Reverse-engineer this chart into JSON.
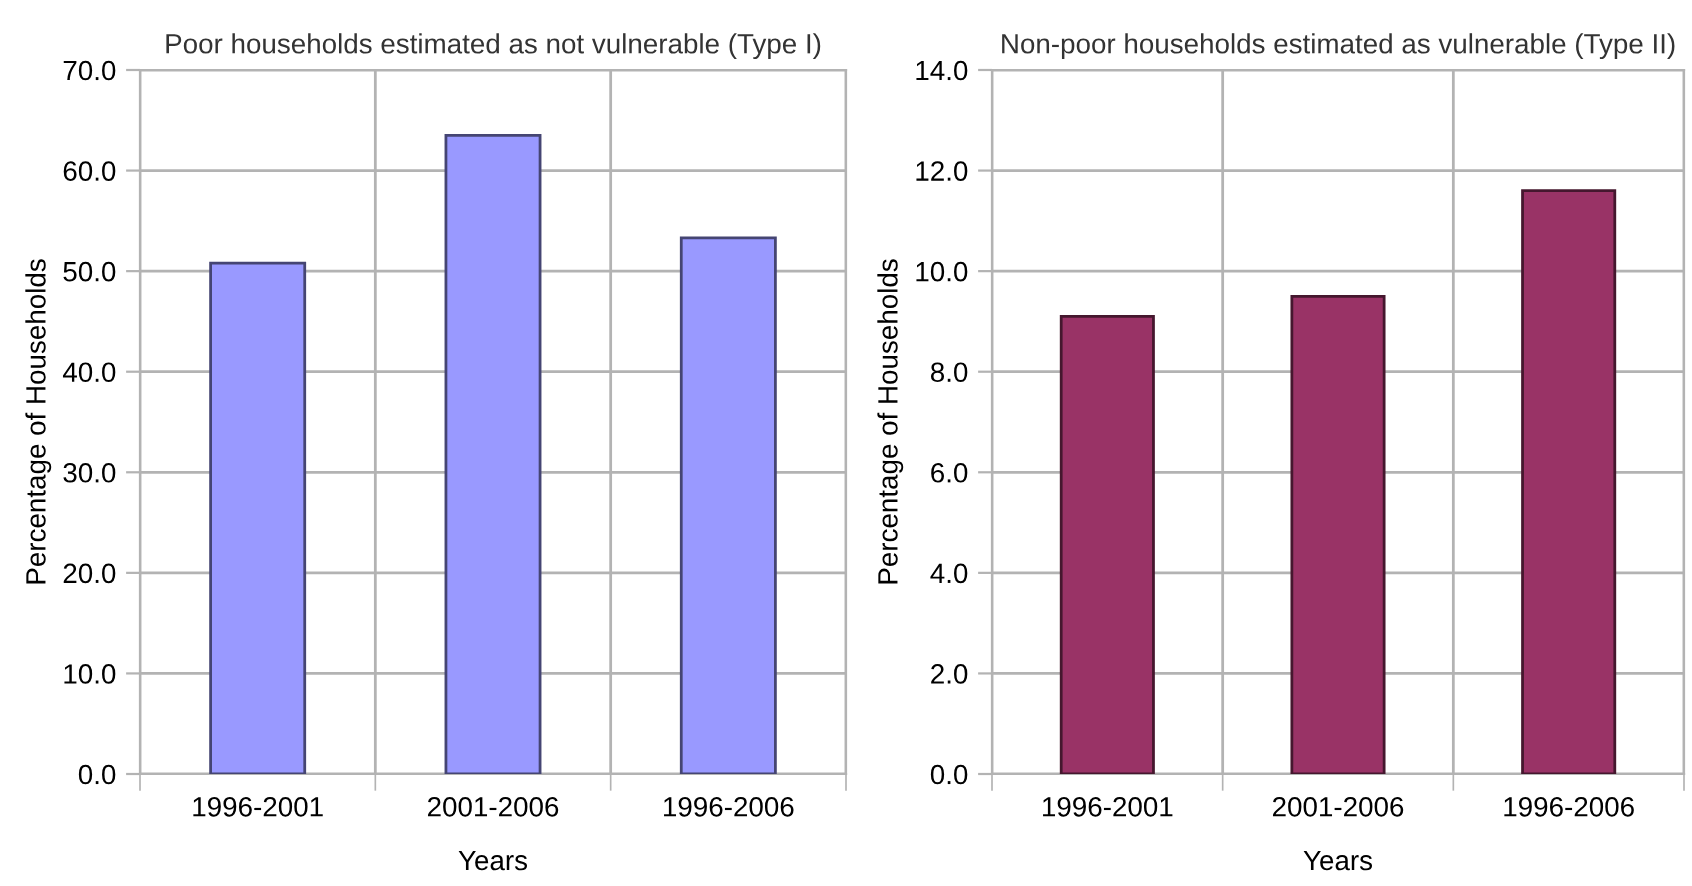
{
  "chart_data": [
    {
      "type": "bar",
      "title": "Poor households estimated as not vulnerable (Type I)",
      "xlabel": "Years",
      "ylabel": "Percentage of Households",
      "categories": [
        "1996-2001",
        "2001-2006",
        "1996-2006"
      ],
      "series": [
        {
          "color": "#9999ff",
          "values": [
            50.8,
            63.5,
            53.3
          ]
        }
      ],
      "ylim": [
        0,
        70
      ],
      "yticks": [
        {
          "value": 0,
          "label": "0.0"
        },
        {
          "value": 10,
          "label": "10.0"
        },
        {
          "value": 20,
          "label": "20.0"
        },
        {
          "value": 30,
          "label": "30.0"
        },
        {
          "value": 40,
          "label": "40.0"
        },
        {
          "value": 50,
          "label": "50.0"
        },
        {
          "value": 60,
          "label": "60.0"
        },
        {
          "value": 70,
          "label": "70.0"
        }
      ],
      "grid": true,
      "legend": false
    },
    {
      "type": "bar",
      "title": "Non-poor households estimated as vulnerable (Type II)",
      "xlabel": "Years",
      "ylabel": "Percentage of Households",
      "categories": [
        "1996-2001",
        "2001-2006",
        "1996-2006"
      ],
      "series": [
        {
          "color": "#993366",
          "values": [
            9.1,
            9.5,
            11.6
          ]
        }
      ],
      "ylim": [
        0,
        14
      ],
      "yticks": [
        {
          "value": 0,
          "label": "0.0"
        },
        {
          "value": 2,
          "label": "2.0"
        },
        {
          "value": 4,
          "label": "4.0"
        },
        {
          "value": 6,
          "label": "6.0"
        },
        {
          "value": 8,
          "label": "8.0"
        },
        {
          "value": 10,
          "label": "10.0"
        },
        {
          "value": 12,
          "label": "12.0"
        },
        {
          "value": 14,
          "label": "14.0"
        }
      ],
      "grid": true,
      "legend": false
    }
  ]
}
